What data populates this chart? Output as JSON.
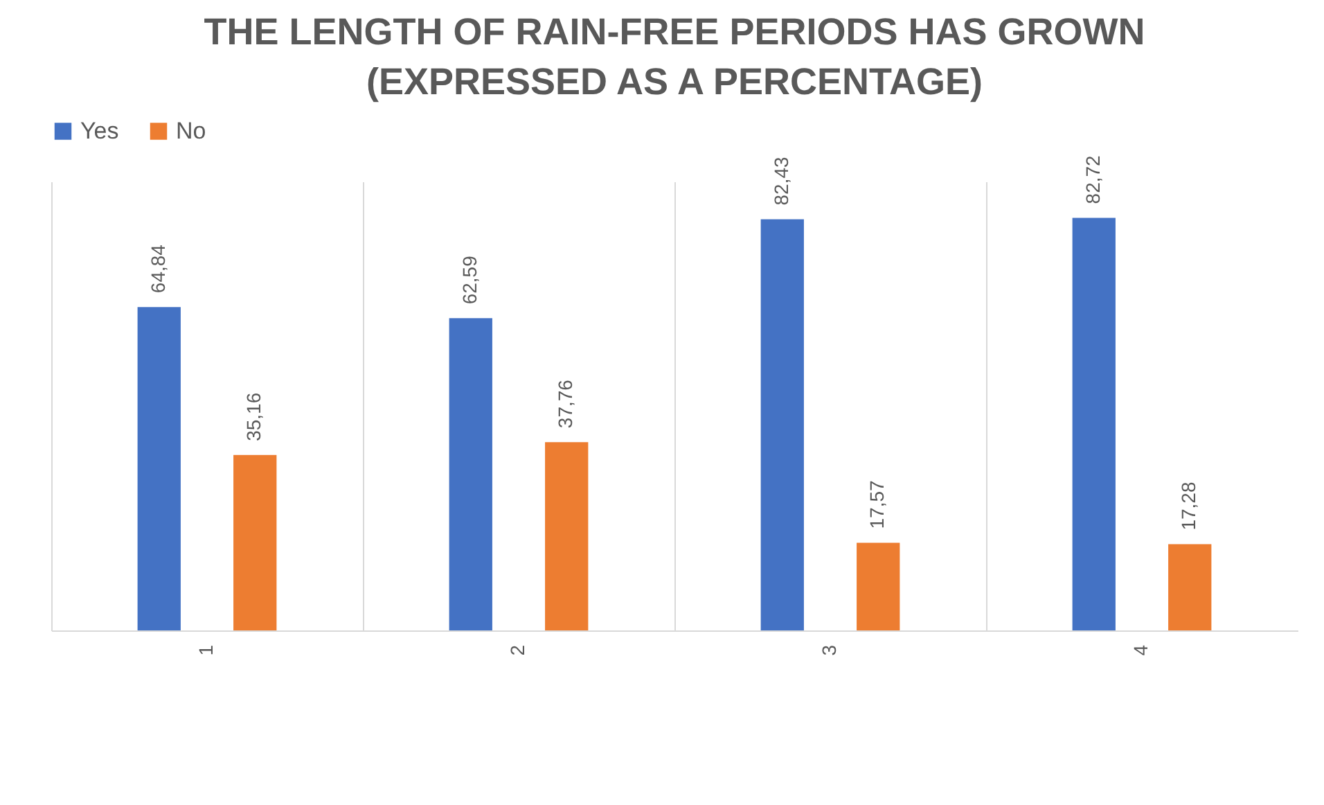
{
  "chart_data": {
    "type": "bar",
    "title": "THE LENGTH OF RAIN-FREE PERIODS HAS GROWN (EXPRESSED AS A PERCENTAGE)",
    "categories": [
      "1",
      "2",
      "3",
      "4"
    ],
    "series": [
      {
        "name": "Yes",
        "color": "#4472c4",
        "values": [
          64.84,
          62.59,
          82.43,
          82.72
        ],
        "value_labels": [
          "64,84",
          "62,59",
          "82,43",
          "82,72"
        ]
      },
      {
        "name": "No",
        "color": "#ed7d31",
        "values": [
          35.16,
          37.76,
          17.57,
          17.28
        ],
        "value_labels": [
          "35,16",
          "37,76",
          "17,57",
          "17,28"
        ]
      }
    ],
    "grid": "x",
    "legend": "top"
  }
}
